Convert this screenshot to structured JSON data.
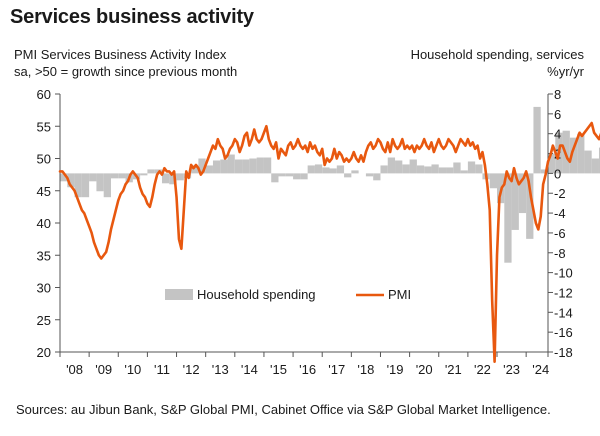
{
  "title": "Services business activity",
  "left_axis_label": [
    "PMI Services Business Activity Index",
    "sa, >50 = growth since previous month"
  ],
  "right_axis_label": [
    "Household spending, services",
    "%yr/yr"
  ],
  "source": "Sources: au Jibun Bank, S&P Global PMI, Cabinet Office via S&P Global Market Intelligence.",
  "colors": {
    "pmi": "#e8580f",
    "spending": "#c4c4c4",
    "axis": "#555555"
  },
  "chart_data": {
    "type": "line",
    "x_ticks": [
      "'08",
      "'09",
      "'10",
      "'11",
      "'12",
      "'13",
      "'14",
      "'15",
      "'16",
      "'17",
      "'18",
      "'19",
      "'20",
      "'21",
      "'22",
      "'23",
      "'24"
    ],
    "left_ylim": [
      20,
      60
    ],
    "left_ticks": [
      20,
      25,
      30,
      35,
      40,
      45,
      50,
      55,
      60
    ],
    "right_ylim": [
      -18,
      8
    ],
    "right_ticks": [
      -18,
      -16,
      -14,
      -12,
      -10,
      -8,
      -6,
      -4,
      -2,
      0,
      2,
      4,
      6,
      8
    ],
    "legend": [
      "Household spending",
      "PMI"
    ],
    "series": [
      {
        "name": "PMI",
        "type": "line",
        "axis": "left",
        "x_start": "2007-10",
        "frequency": "monthly",
        "values": [
          47,
          48,
          48.5,
          48,
          48,
          47.5,
          47,
          46,
          45.5,
          45,
          44,
          43,
          42,
          41.5,
          40.5,
          39.5,
          38.5,
          37,
          36,
          35,
          34.5,
          35,
          35.5,
          37,
          39,
          40.5,
          42,
          43.5,
          44.5,
          45,
          46,
          46.5,
          47.5,
          48,
          47.5,
          47,
          45.5,
          44.5,
          44,
          43,
          42.5,
          44,
          46,
          47.5,
          48,
          47.5,
          48.5,
          48,
          48,
          47.5,
          48,
          44,
          37.5,
          36,
          42,
          48,
          47,
          49,
          48.5,
          49,
          48.5,
          47.5,
          48,
          49,
          50,
          51,
          52,
          51.5,
          53,
          52,
          51.5,
          50,
          50.5,
          51.5,
          52,
          53,
          52.5,
          51,
          52,
          53.5,
          54,
          52,
          53,
          54.5,
          53,
          52.5,
          53,
          54,
          55,
          53,
          52,
          51.5,
          52.5,
          50,
          51.5,
          51,
          50.5,
          52,
          52.5,
          51.5,
          52,
          53,
          52,
          51.5,
          52,
          51,
          52.5,
          51.5,
          52,
          51,
          50.5,
          51.5,
          49,
          50,
          49.5,
          50,
          51.5,
          50,
          51,
          50.5,
          49.5,
          50,
          49.5,
          50,
          51,
          50,
          49.5,
          50.5,
          49.5,
          51,
          52,
          52.5,
          51.5,
          52,
          53,
          52.5,
          51.5,
          51,
          52.5,
          51,
          53,
          52,
          51.5,
          52,
          53,
          51.5,
          52,
          51.5,
          52,
          51,
          52,
          51.5,
          52,
          53,
          52,
          51.5,
          52.5,
          51,
          52,
          53,
          52,
          51.5,
          52,
          53,
          52.5,
          52,
          51,
          52,
          53,
          52.5,
          52,
          53,
          52,
          52.5,
          51.5,
          52,
          50,
          51,
          49,
          46,
          42,
          28,
          18.5,
          35,
          44,
          45.5,
          46,
          48,
          47,
          46.5,
          48.5,
          47,
          46,
          46.5,
          47,
          48,
          46.5,
          44,
          42,
          40,
          39,
          41,
          46,
          47.5,
          49.5,
          50.5,
          52,
          51,
          50,
          52,
          52,
          51,
          50,
          49.5,
          51,
          52,
          53,
          54,
          53.5,
          54,
          54.5,
          55,
          55.5,
          54,
          53.5,
          53,
          54,
          53.5,
          53,
          52,
          51,
          52.5,
          53,
          53.5,
          54,
          53.5,
          51.5,
          49.5,
          52,
          53.5,
          53.5
        ]
      },
      {
        "name": "Household spending",
        "type": "bar",
        "axis": "right",
        "x_start": "2008-01",
        "frequency": "quarterly",
        "values": [
          -0.8,
          -1.4,
          -2.4,
          -2.4,
          -0.8,
          -1.8,
          -2.4,
          -0.5,
          -0.5,
          -0.9,
          -0.6,
          -0.2,
          0.4,
          0.4,
          -1.0,
          -1.1,
          -0.7,
          -0.5,
          0.8,
          1.5,
          0.8,
          1.3,
          1.4,
          1.9,
          1.4,
          1.4,
          1.5,
          1.6,
          1.6,
          -0.9,
          -0.3,
          -0.3,
          -0.6,
          -0.6,
          0.8,
          0.9,
          0.6,
          0.5,
          0.8,
          -0.4,
          0.3,
          0.0,
          -0.3,
          -0.7,
          0.8,
          1.6,
          1.3,
          0.9,
          1.4,
          0.8,
          0.7,
          0.9,
          0.6,
          0.6,
          1.1,
          0.3,
          1.2,
          0.9,
          -0.6,
          -1.5,
          -3.0,
          -9.0,
          -5.7,
          -4.0,
          -6.6,
          6.7,
          0.4,
          2.0,
          4.1,
          4.3,
          3.6,
          4.0,
          2.3,
          1.5,
          2.6,
          1.4,
          -0.1,
          1.2
        ]
      }
    ]
  }
}
